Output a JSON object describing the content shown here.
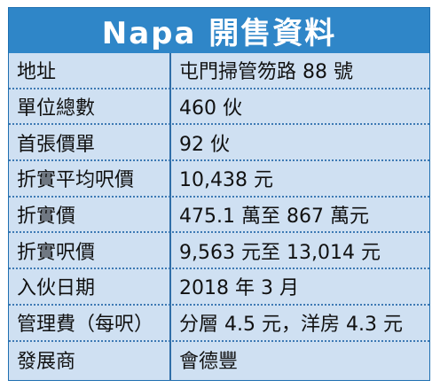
{
  "title": "Napa 開售資料",
  "rows": [
    {
      "label": "地址",
      "value": "屯門掃管笏路 88 號"
    },
    {
      "label": "單位總數",
      "value": "460 伙"
    },
    {
      "label": "首張價單",
      "value": "92 伙"
    },
    {
      "label": "折實平均呎價",
      "value": "10,438 元"
    },
    {
      "label": "折實價",
      "value": "475.1 萬至 867 萬元"
    },
    {
      "label": "折實呎價",
      "value": "9,563 元至 13,014 元"
    },
    {
      "label": "入伙日期",
      "value": "2018 年 3 月"
    },
    {
      "label": "管理費（每呎）",
      "value": "分層 4.5 元，洋房 4.3 元"
    },
    {
      "label": "發展商",
      "value": "會德豐"
    }
  ],
  "colors": {
    "title_bg": "#2f86c8",
    "table_bg": "#cfe0f2",
    "rule": "#3e7ab4"
  }
}
